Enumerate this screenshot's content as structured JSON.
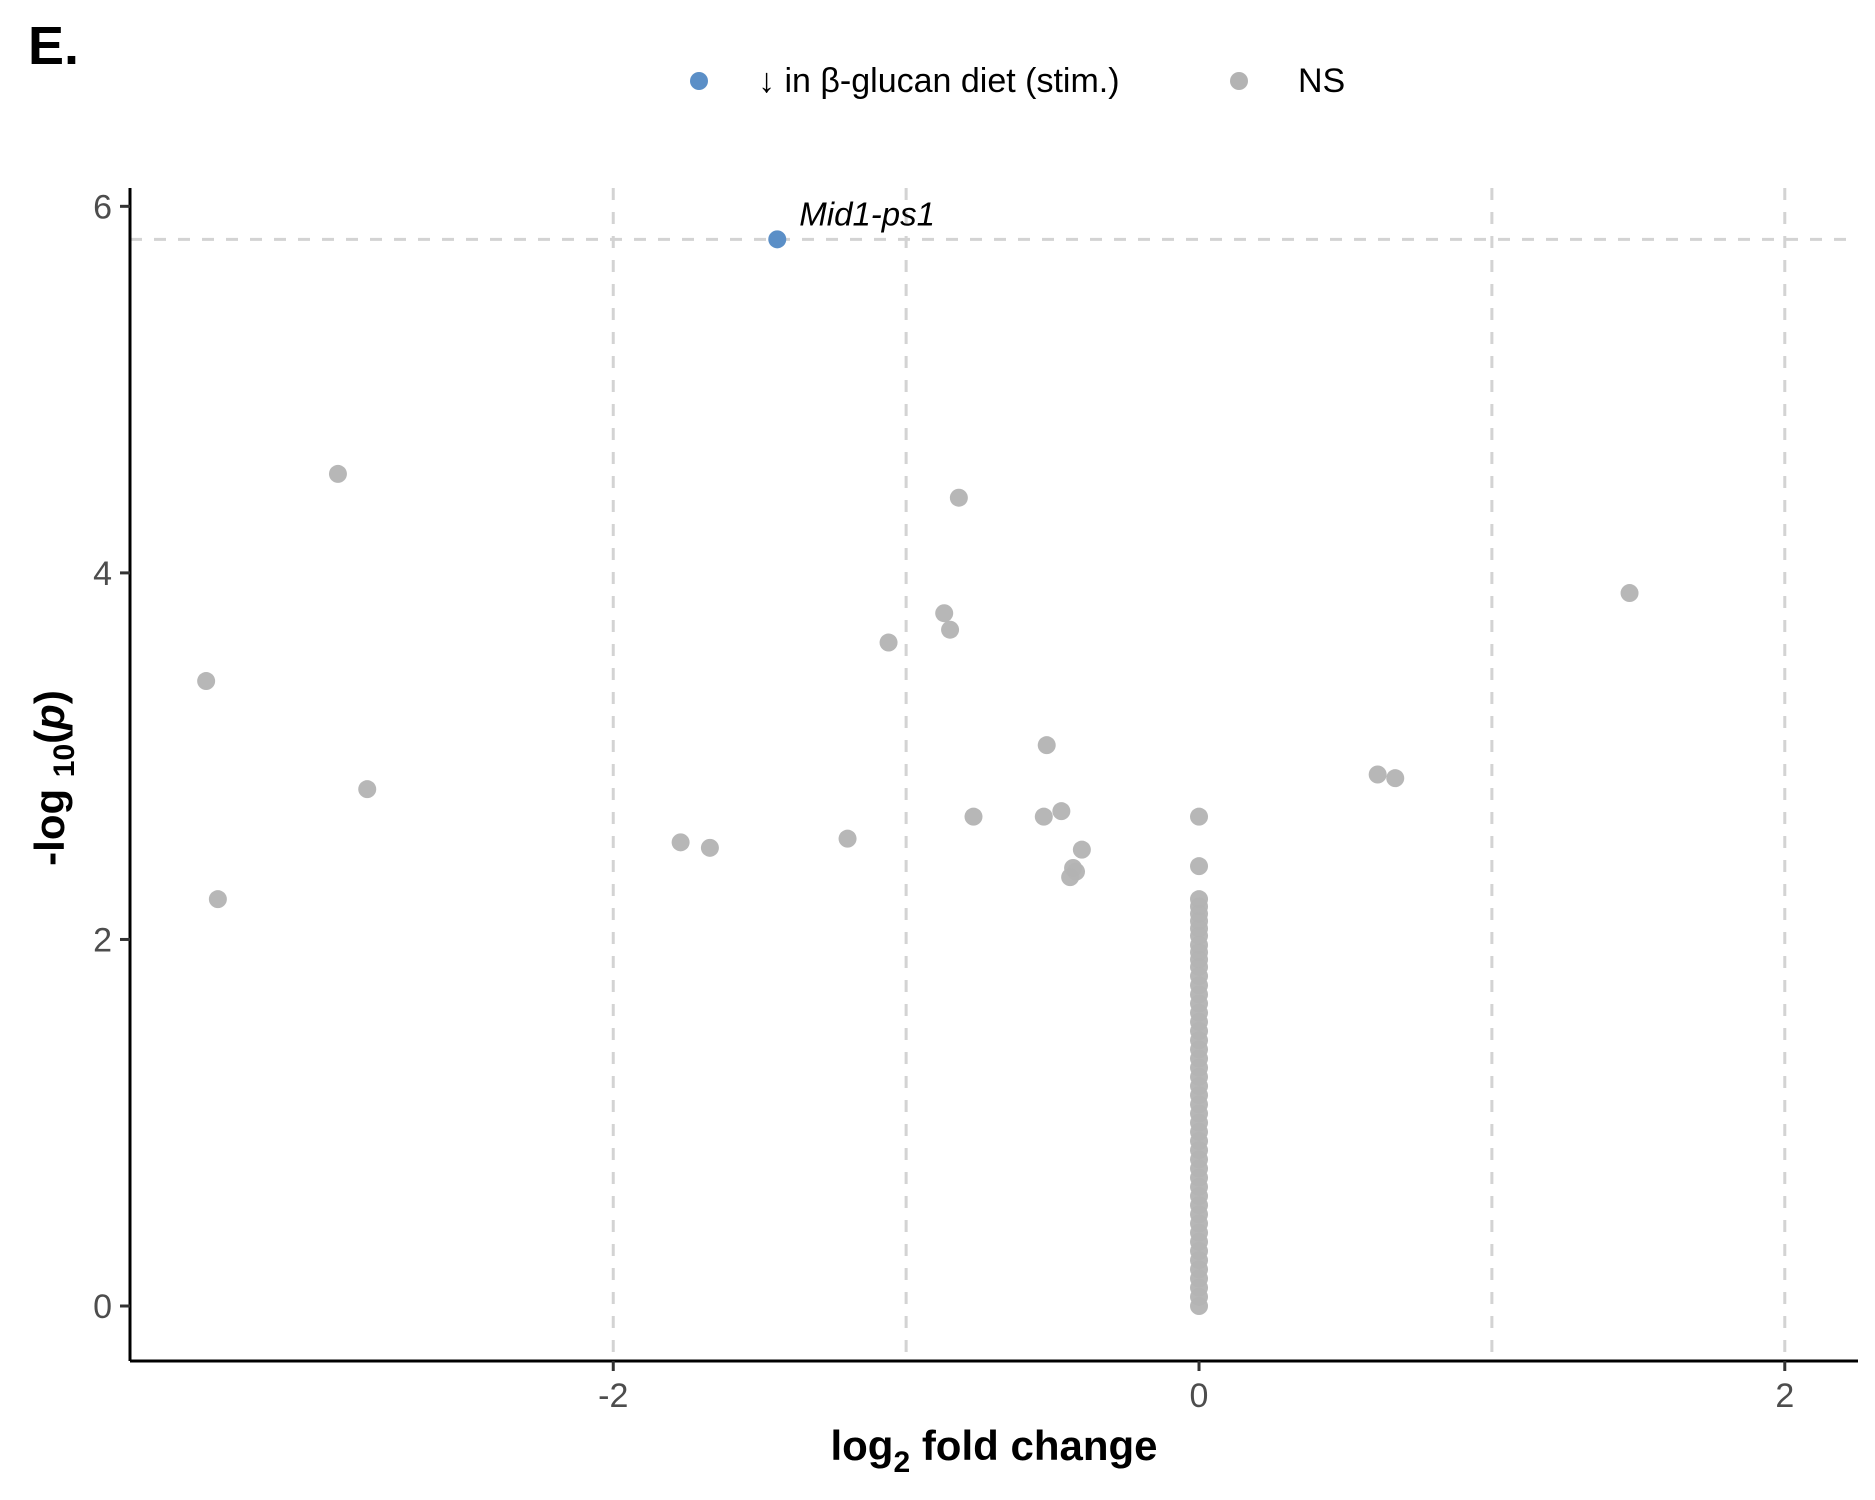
{
  "chart_data": {
    "type": "scatter",
    "panel_label": "E.",
    "xlabel": {
      "main": "log",
      "sub": "2",
      "rest": " fold change"
    },
    "ylabel": {
      "main": "-log ",
      "sub": "10",
      "open": "(",
      "var": "p",
      "close": ")"
    },
    "xlim": [
      -3.65,
      2.25
    ],
    "ylim": [
      -0.3,
      6.1
    ],
    "x_ticks": [
      {
        "value": -2,
        "label": "-2"
      },
      {
        "value": 0,
        "label": "0"
      },
      {
        "value": 2,
        "label": "2"
      }
    ],
    "y_ticks": [
      {
        "value": 0,
        "label": "0"
      },
      {
        "value": 2,
        "label": "2"
      },
      {
        "value": 4,
        "label": "4"
      },
      {
        "value": 6,
        "label": "6"
      }
    ],
    "reference_lines": {
      "vertical": [
        -2,
        -1,
        1,
        2
      ],
      "horizontal": [
        5.82
      ]
    },
    "grid": false,
    "legend": {
      "position": "top",
      "entries": [
        {
          "label": "↓  in β-glucan  diet (stim.)",
          "color": "#5b8fc7"
        },
        {
          "label": "NS",
          "color": "#b3b3b3"
        }
      ]
    },
    "colors": {
      "significant": "#5b8fc7",
      "ns": "#b3b3b3",
      "axis": "#000000",
      "refline": "#d3d3d3"
    },
    "series": [
      {
        "name": "↓  in β-glucan  diet (stim.)",
        "points": [
          {
            "x": -1.44,
            "y": 5.82,
            "label": "Mid1-ps1"
          }
        ]
      },
      {
        "name": "NS",
        "points": [
          {
            "x": -2.94,
            "y": 4.54
          },
          {
            "x": -0.82,
            "y": 4.41
          },
          {
            "x": 1.47,
            "y": 3.89
          },
          {
            "x": -0.87,
            "y": 3.78
          },
          {
            "x": -0.85,
            "y": 3.69
          },
          {
            "x": -1.06,
            "y": 3.62
          },
          {
            "x": -3.39,
            "y": 3.41
          },
          {
            "x": -0.52,
            "y": 3.06
          },
          {
            "x": 0.61,
            "y": 2.9
          },
          {
            "x": 0.67,
            "y": 2.88
          },
          {
            "x": -2.84,
            "y": 2.82
          },
          {
            "x": -0.47,
            "y": 2.7
          },
          {
            "x": -0.77,
            "y": 2.67
          },
          {
            "x": -0.53,
            "y": 2.67
          },
          {
            "x": 0.0,
            "y": 2.67
          },
          {
            "x": -1.2,
            "y": 2.55
          },
          {
            "x": -1.77,
            "y": 2.53
          },
          {
            "x": -1.67,
            "y": 2.5
          },
          {
            "x": -0.4,
            "y": 2.49
          },
          {
            "x": 0.0,
            "y": 2.4
          },
          {
            "x": -0.43,
            "y": 2.39
          },
          {
            "x": -0.42,
            "y": 2.37
          },
          {
            "x": -0.44,
            "y": 2.34
          },
          {
            "x": -3.35,
            "y": 2.22
          },
          {
            "x": 0.0,
            "y": 2.22
          },
          {
            "x": 0.0,
            "y": 2.18
          },
          {
            "x": 0.0,
            "y": 2.14
          },
          {
            "x": 0.0,
            "y": 2.1
          },
          {
            "x": 0.0,
            "y": 2.06
          },
          {
            "x": 0.0,
            "y": 2.02
          },
          {
            "x": 0.0,
            "y": 1.97
          },
          {
            "x": 0.0,
            "y": 1.93
          },
          {
            "x": 0.0,
            "y": 1.89
          },
          {
            "x": 0.0,
            "y": 1.85
          },
          {
            "x": 0.0,
            "y": 1.8
          },
          {
            "x": 0.0,
            "y": 1.75
          },
          {
            "x": 0.0,
            "y": 1.7
          },
          {
            "x": 0.0,
            "y": 1.65
          },
          {
            "x": 0.0,
            "y": 1.6
          },
          {
            "x": 0.0,
            "y": 1.55
          },
          {
            "x": 0.0,
            "y": 1.5
          },
          {
            "x": 0.0,
            "y": 1.45
          },
          {
            "x": 0.0,
            "y": 1.4
          },
          {
            "x": 0.0,
            "y": 1.35
          },
          {
            "x": 0.0,
            "y": 1.3
          },
          {
            "x": 0.0,
            "y": 1.25
          },
          {
            "x": 0.0,
            "y": 1.2
          },
          {
            "x": 0.0,
            "y": 1.15
          },
          {
            "x": 0.0,
            "y": 1.1
          },
          {
            "x": 0.0,
            "y": 1.05
          },
          {
            "x": 0.0,
            "y": 1.0
          },
          {
            "x": 0.0,
            "y": 0.95
          },
          {
            "x": 0.0,
            "y": 0.9
          },
          {
            "x": 0.0,
            "y": 0.85
          },
          {
            "x": 0.0,
            "y": 0.8
          },
          {
            "x": 0.0,
            "y": 0.75
          },
          {
            "x": 0.0,
            "y": 0.7
          },
          {
            "x": 0.0,
            "y": 0.65
          },
          {
            "x": 0.0,
            "y": 0.6
          },
          {
            "x": 0.0,
            "y": 0.55
          },
          {
            "x": 0.0,
            "y": 0.5
          },
          {
            "x": 0.0,
            "y": 0.45
          },
          {
            "x": 0.0,
            "y": 0.4
          },
          {
            "x": 0.0,
            "y": 0.35
          },
          {
            "x": 0.0,
            "y": 0.3
          },
          {
            "x": 0.0,
            "y": 0.25
          },
          {
            "x": 0.0,
            "y": 0.2
          },
          {
            "x": 0.0,
            "y": 0.15
          },
          {
            "x": 0.0,
            "y": 0.1
          },
          {
            "x": 0.0,
            "y": 0.05
          },
          {
            "x": 0.0,
            "y": 0.0
          }
        ]
      }
    ]
  }
}
